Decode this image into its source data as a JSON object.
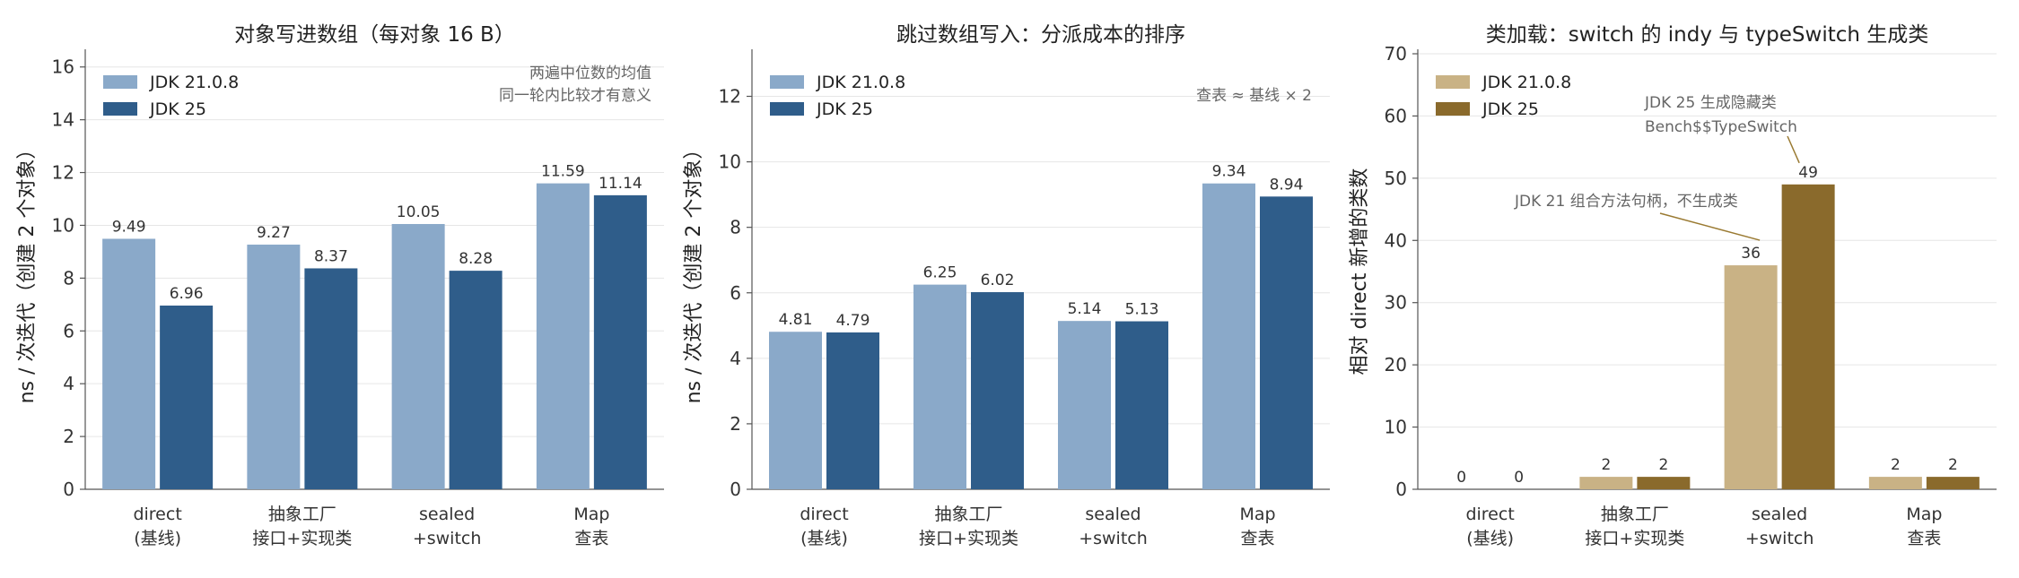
{
  "colors": {
    "jdk21_blue": "#8aa9c9",
    "jdk25_blue": "#2f5d8a",
    "jdk21_gold": "#c9b285",
    "jdk25_gold": "#8a6a2c",
    "note_blue": "#3a6da4",
    "note_gold": "#9a7a32"
  },
  "chart_data": [
    {
      "type": "bar",
      "title": "对象写进数组（每对象 16 B）",
      "ylabel": "ns / 次迭代（创建 2 个对象）",
      "ylim": [
        0,
        16.5
      ],
      "yticks": [
        0,
        2,
        4,
        6,
        8,
        10,
        12,
        14,
        16
      ],
      "grid": true,
      "legend": "top-left",
      "categories": [
        "direct\n(基线)",
        "抽象工厂\n接口+实现类",
        "sealed\n+switch",
        "Map\n查表"
      ],
      "series": [
        {
          "name": "JDK 21.0.8",
          "values": [
            9.49,
            9.27,
            10.05,
            11.59
          ],
          "labels": [
            "9.49",
            "9.27",
            "10.05",
            "11.59"
          ]
        },
        {
          "name": "JDK 25",
          "values": [
            6.96,
            8.37,
            8.28,
            11.14
          ],
          "labels": [
            "6.96",
            "8.37",
            "8.28",
            "11.14"
          ]
        }
      ],
      "annotations": [
        {
          "text": "两遍中位数的均值",
          "color": "#666666"
        },
        {
          "text": "同一轮内比较才有意义",
          "color": "#666666"
        }
      ]
    },
    {
      "type": "bar",
      "title": "跳过数组写入：分派成本的排序",
      "ylabel": "ns / 次迭代（创建 2 个对象）",
      "ylim": [
        0,
        13.3
      ],
      "yticks": [
        0,
        2,
        4,
        6,
        8,
        10,
        12
      ],
      "grid": true,
      "legend": "top-left",
      "categories": [
        "direct\n(基线)",
        "抽象工厂\n接口+实现类",
        "sealed\n+switch",
        "Map\n查表"
      ],
      "series": [
        {
          "name": "JDK 21.0.8",
          "values": [
            4.81,
            6.25,
            5.14,
            9.34
          ],
          "labels": [
            "4.81",
            "6.25",
            "5.14",
            "9.34"
          ]
        },
        {
          "name": "JDK 25",
          "values": [
            4.79,
            6.02,
            5.13,
            8.94
          ],
          "labels": [
            "4.79",
            "6.02",
            "5.13",
            "8.94"
          ]
        }
      ],
      "annotations": [
        {
          "text": "查表 ≈ 基线 × 2",
          "color": "#3a6da4"
        }
      ]
    },
    {
      "type": "bar",
      "title": "类加载：switch 的 indy 与 typeSwitch 生成类",
      "ylabel": "相对 direct 新增的类数",
      "ylim": [
        0,
        70
      ],
      "yticks": [
        0,
        10,
        20,
        30,
        40,
        50,
        60,
        70
      ],
      "grid": true,
      "legend": "top-left",
      "categories": [
        "direct\n(基线)",
        "抽象工厂\n接口+实现类",
        "sealed\n+switch",
        "Map\n查表"
      ],
      "series": [
        {
          "name": "JDK 21.0.8",
          "values": [
            0,
            2,
            36,
            2
          ],
          "labels": [
            "0",
            "2",
            "36",
            "2"
          ]
        },
        {
          "name": "JDK 25",
          "values": [
            0,
            2,
            49,
            2
          ],
          "labels": [
            "0",
            "2",
            "49",
            "2"
          ]
        }
      ],
      "annotations": [
        {
          "text": "JDK 25 生成隐藏类",
          "color": "#9a7a32"
        },
        {
          "text": "Bench$$TypeSwitch",
          "color": "#9a7a32"
        },
        {
          "text": "JDK 21 组合方法句柄，不生成类",
          "color": "#9a7a32"
        }
      ]
    }
  ]
}
